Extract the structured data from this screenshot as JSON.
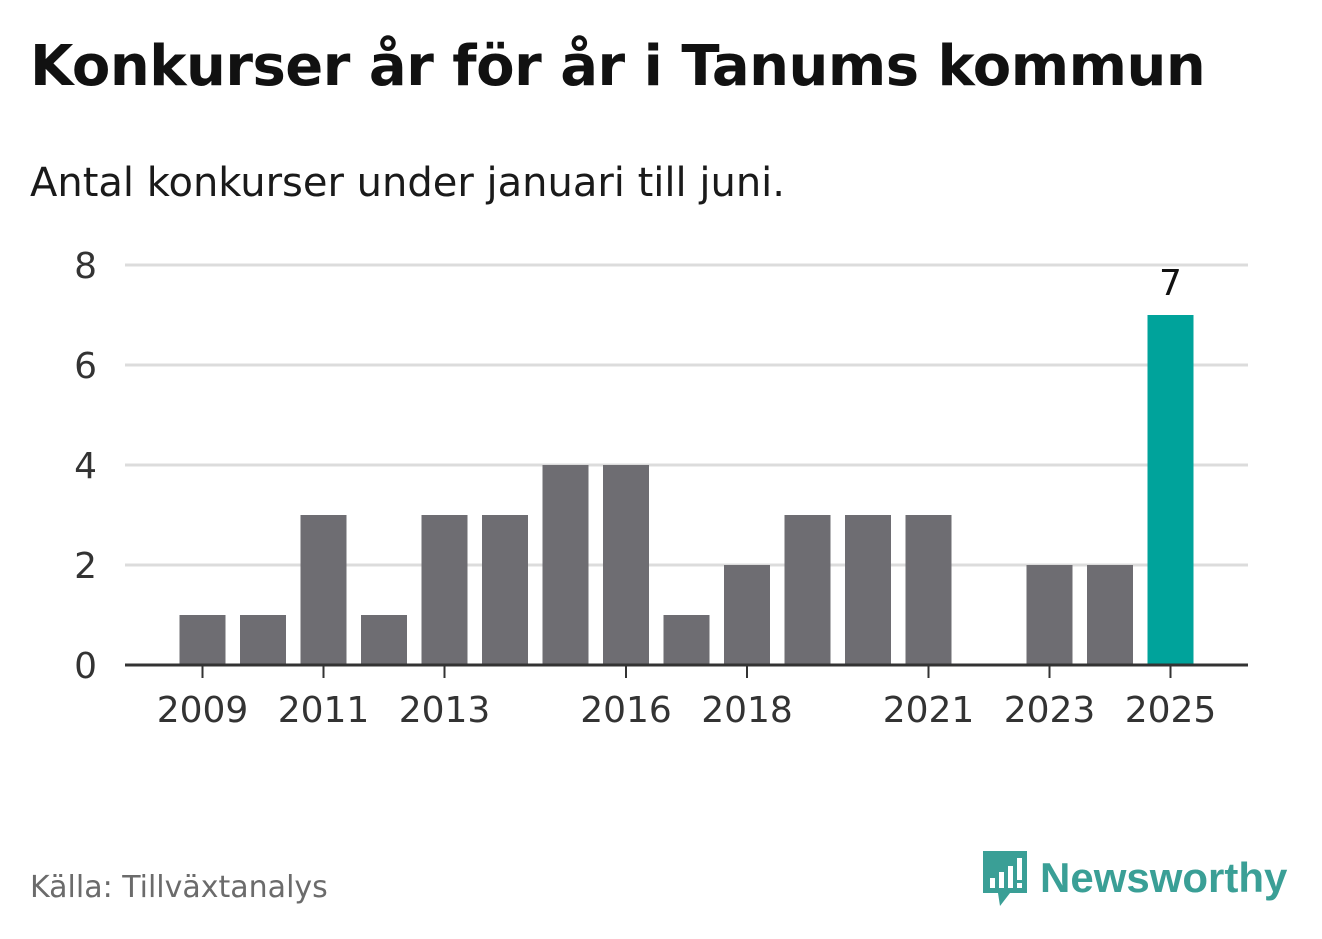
{
  "title": "Konkurser år för år i Tanums kommun",
  "subtitle": "Antal konkurser under januari till juni.",
  "source": "Källa: Tillväxtanalys",
  "brand": {
    "name": "Newsworthy",
    "icon": "newsworthy-logo-icon",
    "color": "#3a9f96"
  },
  "colors": {
    "bar": "#6e6d72",
    "highlight": "#00a39b",
    "grid": "#dcdcdc",
    "axis": "#333333"
  },
  "chart_data": {
    "type": "bar",
    "categories": [
      "2009",
      "2010",
      "2011",
      "2012",
      "2013",
      "2014",
      "2015",
      "2016",
      "2017",
      "2018",
      "2019",
      "2020",
      "2021",
      "2022",
      "2023",
      "2024",
      "2025"
    ],
    "values": [
      1,
      1,
      3,
      1,
      3,
      3,
      4,
      4,
      1,
      2,
      3,
      3,
      3,
      0,
      2,
      2,
      7
    ],
    "xtick_labels": [
      "2009",
      "2011",
      "2013",
      "2016",
      "2018",
      "2021",
      "2023",
      "2025"
    ],
    "yticks": [
      0,
      2,
      4,
      6,
      8
    ],
    "ylim": [
      0,
      8
    ],
    "grid": true,
    "highlight_category": "2025",
    "data_labels": [
      {
        "category": "2025",
        "text": "7"
      }
    ]
  }
}
